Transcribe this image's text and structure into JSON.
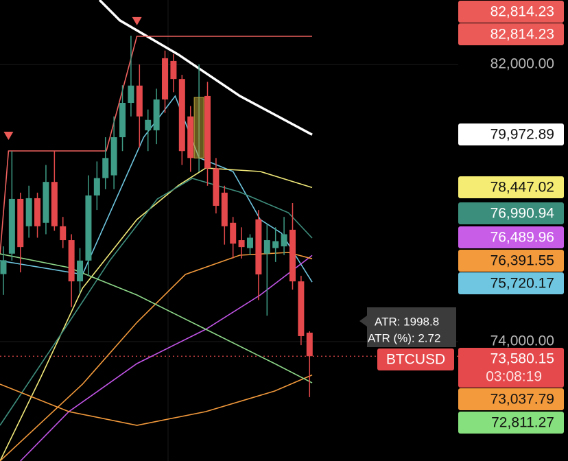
{
  "chart_data": {
    "type": "candlestick",
    "x": [
      1,
      2,
      3,
      4,
      5,
      6,
      7,
      8,
      9,
      10,
      11,
      12,
      13,
      14,
      15,
      16,
      17,
      18,
      19,
      20,
      21,
      22,
      23,
      24,
      25,
      26,
      27,
      28,
      29,
      30,
      31,
      32,
      33,
      34,
      35,
      36,
      37
    ],
    "open": [
      75950,
      76540,
      78120,
      77330,
      78140,
      77430,
      78610,
      77330,
      76930,
      75740,
      76340,
      78220,
      78720,
      78800,
      79900,
      80890,
      81390,
      80100,
      80100,
      82180,
      82100,
      81580,
      80500,
      79300,
      81090,
      79000,
      78300,
      77430,
      76930,
      76700,
      77530,
      76540,
      76700,
      76750,
      77230,
      75740,
      74260
    ],
    "high": [
      76750,
      79500,
      78300,
      78500,
      78300,
      79100,
      79500,
      77600,
      77100,
      76700,
      78800,
      79200,
      79900,
      80500,
      81400,
      82830,
      82000,
      80700,
      81300,
      82400,
      82300,
      81700,
      80800,
      82000,
      81500,
      79300,
      78500,
      77600,
      77300,
      77100,
      77800,
      77400,
      77300,
      77600,
      78000,
      75900,
      74300
    ],
    "low": [
      75350,
      76340,
      76000,
      77000,
      77000,
      77100,
      77200,
      76700,
      75000,
      75400,
      75900,
      77800,
      78400,
      78400,
      79500,
      80500,
      79600,
      79500,
      79700,
      80600,
      81200,
      79100,
      78900,
      78900,
      78500,
      77700,
      76800,
      76400,
      76400,
      76500,
      75200,
      74750,
      76300,
      76500,
      75500,
      73900,
      72400
    ],
    "close": [
      76350,
      78120,
      76730,
      78140,
      77330,
      78610,
      77330,
      76930,
      75740,
      76340,
      78220,
      78720,
      79300,
      79900,
      80890,
      81390,
      80500,
      80400,
      80990,
      80990,
      81580,
      79500,
      79300,
      81050,
      79000,
      77920,
      77330,
      76830,
      76730,
      77000,
      75940,
      76930,
      76900,
      77100,
      75740,
      74160,
      73580.15
    ],
    "up_color": "#3f9c86",
    "down_color": "#e5494b",
    "highlight": 24,
    "highlight_color": "#b9a23a",
    "xlim": [
      0.6,
      37.3
    ],
    "ylim": [
      70556,
      83860
    ],
    "yticks": [
      {
        "value": 82000,
        "label": "82,000.00"
      },
      {
        "value": 74000,
        "label": "74,000.00"
      }
    ],
    "lines": [
      {
        "color": "#ffffff",
        "x": [
          12.3,
          14.7,
          21.6,
          28.8,
          37.3
        ],
        "values": [
          83860,
          83270,
          82280,
          81090,
          79972.89
        ]
      },
      {
        "color": "#f0625f",
        "x": [
          0.6,
          1.6,
          13.1,
          16.7,
          37.3
        ],
        "values": [
          76515,
          79505,
          79505,
          82814.23,
          82814.23
        ]
      },
      {
        "color": "#6ec6e0",
        "x": [
          0.6,
          10.3,
          17.5,
          21.2,
          24.0,
          28.0,
          31.2,
          33.7,
          37.3
        ],
        "values": [
          76337,
          75941,
          79901,
          81089,
          79307,
          78911,
          77525,
          77129,
          75720.17
        ]
      },
      {
        "color": "#f2ea7a",
        "x": [
          0.6,
          5.4,
          10.3,
          16.7,
          21.6,
          24.8,
          31.2,
          37.3
        ],
        "values": [
          70556,
          72971,
          75545,
          77525,
          78515,
          79010,
          78911,
          78447.02
        ]
      },
      {
        "color": "#3f8f7e",
        "x": [
          0.6,
          8.7,
          13.5,
          19.1,
          23.2,
          28.8,
          34.5,
          37.3
        ],
        "values": [
          71585,
          74555,
          76337,
          78119,
          78713,
          78317,
          77723,
          76990.94
        ]
      },
      {
        "color": "#c355e8",
        "x": [
          3.0,
          8.7,
          16.7,
          24.8,
          31.2,
          37.3
        ],
        "values": [
          70556,
          71981,
          73367,
          74357,
          75347,
          76489.96
        ]
      },
      {
        "color": "#f39a3c",
        "x": [
          0.6,
          10.3,
          16.7,
          22.4,
          28.8,
          34.5,
          37.3
        ],
        "values": [
          70556,
          72773,
          74555,
          75941,
          76496,
          76575,
          76391.55
        ]
      },
      {
        "color": "#f39a3c",
        "x": [
          0.6,
          8.7,
          16.7,
          24.8,
          32.9,
          37.3
        ],
        "values": [
          72773,
          71981,
          71585,
          71981,
          72575,
          73037.79
        ]
      },
      {
        "color": "#8fd98a",
        "x": [
          0.6,
          8.7,
          16.7,
          24.8,
          32.9,
          37.3
        ],
        "values": [
          76535,
          76139,
          75347,
          74357,
          73367,
          72811.27
        ]
      }
    ],
    "price_tags": [
      {
        "value": 82814.23,
        "label": "82,814.23",
        "bg": "#ec5a57",
        "fg": "#ffffff"
      },
      {
        "value": 82814.23,
        "label": "82,814.23",
        "bg": "#ec5a57",
        "fg": "#ffffff"
      },
      {
        "value": 79972.89,
        "label": "79,972.89",
        "bg": "#ffffff",
        "fg": "#111111"
      },
      {
        "value": 78447.02,
        "label": "78,447.02",
        "bg": "#f5ec73",
        "fg": "#111111"
      },
      {
        "value": 76990.94,
        "label": "76,990.94",
        "bg": "#3c8e7c",
        "fg": "#ffffff"
      },
      {
        "value": 76489.96,
        "label": "76,489.96",
        "bg": "#c85ee8",
        "fg": "#ffffff"
      },
      {
        "value": 76391.55,
        "label": "76,391.55",
        "bg": "#f39a3c",
        "fg": "#111111"
      },
      {
        "value": 75720.17,
        "label": "75,720.17",
        "bg": "#6ec6e0",
        "fg": "#111111"
      },
      {
        "value": 73037.79,
        "label": "73,037.79",
        "bg": "#f39a3c",
        "fg": "#111111"
      },
      {
        "value": 72811.27,
        "label": "72,811.27",
        "bg": "#86e07d",
        "fg": "#111111"
      }
    ],
    "last_price": {
      "value": 73580.15,
      "label": "73,580.15",
      "symbol": "BTCUSD",
      "countdown": "03:08:19",
      "color": "#e5494b"
    },
    "tooltip": [
      "ATR: 1998.8",
      "ATR (%): 2.72"
    ]
  }
}
